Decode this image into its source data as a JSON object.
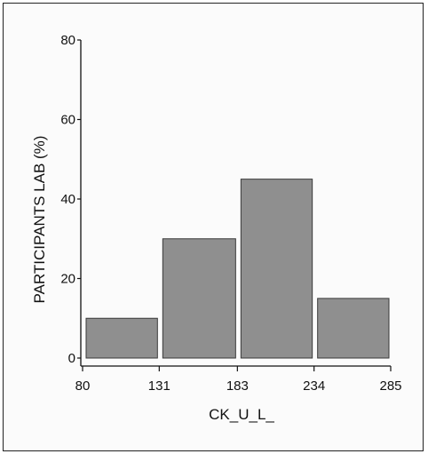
{
  "chart_data": {
    "type": "bar",
    "bin_edges": [
      80,
      131,
      183,
      234,
      285
    ],
    "values": [
      10,
      30,
      45,
      15
    ],
    "xlabel": "CK_U_L_",
    "ylabel": "PARTICIPANTS LAB  (%)",
    "xticks": [
      "80",
      "131",
      "183",
      "234",
      "285"
    ],
    "yticks": [
      "0",
      "20",
      "40",
      "60",
      "80"
    ],
    "ylim": [
      0,
      80
    ],
    "xlim": [
      80,
      285
    ],
    "grid": false,
    "bar_color": "#8f8f8f"
  }
}
